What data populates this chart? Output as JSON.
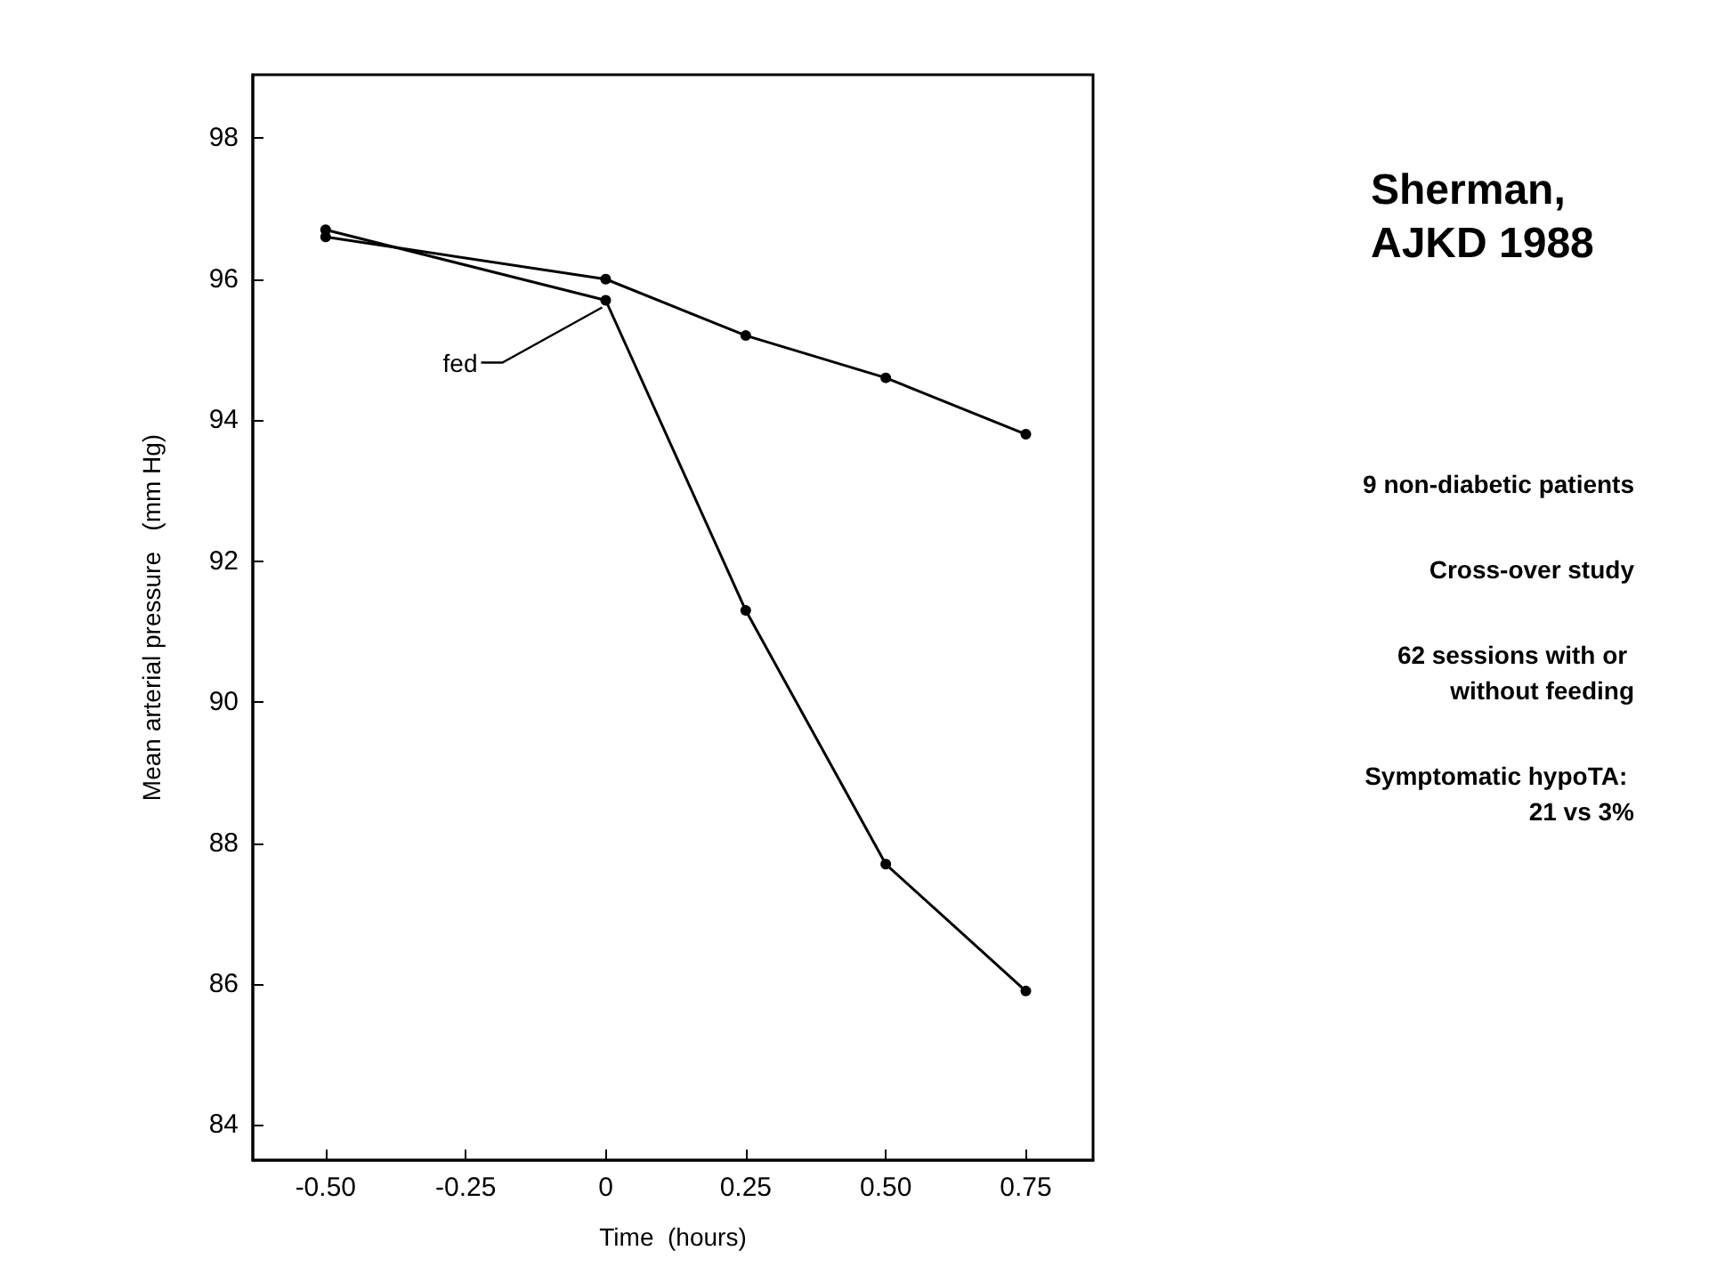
{
  "chart_data": {
    "type": "line",
    "title": "Sherman, AJKD 1988",
    "xlabel": "Time  (hours)",
    "ylabel": "Mean arterial pressure   (mm Hg)",
    "x": [
      -0.5,
      0,
      0.25,
      0.5,
      0.75
    ],
    "series": [
      {
        "color": "#000000",
        "values": [
          96.6,
          96.0,
          95.2,
          94.6,
          93.8
        ]
      },
      {
        "color": "#000000",
        "values": [
          96.7,
          95.7,
          91.3,
          87.7,
          85.9
        ]
      }
    ],
    "xlim": [
      -0.63,
      0.87
    ],
    "xticks": [
      {
        "value": -0.5,
        "label": "-0.50"
      },
      {
        "value": -0.25,
        "label": "-0.25"
      },
      0,
      {
        "value": 0.25,
        "label": "0.25"
      },
      {
        "value": 0.5,
        "label": "0.50"
      },
      {
        "value": 0.75,
        "label": "0.75"
      }
    ],
    "ylim": [
      83.5,
      98.9
    ],
    "yticks": [
      84,
      86,
      88,
      90,
      92,
      94,
      96,
      98
    ],
    "grid": false,
    "marker": "circle",
    "line_style": "solid",
    "annotations": [
      {
        "text": "fed",
        "x": 0,
        "y": 95.7
      },
      "9 non-diabetic patients",
      "Cross-over study",
      "62 sessions with or without feeding",
      "Symptomatic hypoTA: 21 vs 3%"
    ]
  }
}
